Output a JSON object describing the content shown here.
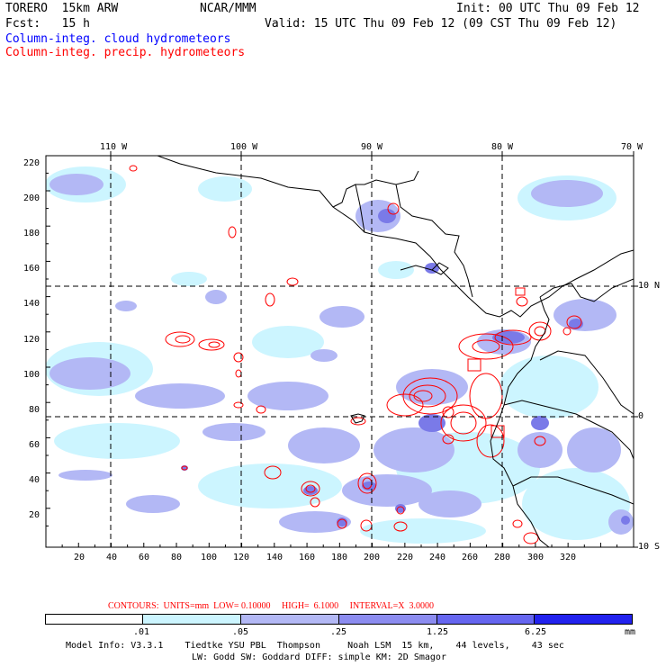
{
  "header": {
    "model": "TORERO  15km ARW",
    "org": "NCAR/MMM",
    "init": "Init: 00 UTC Thu 09 Feb 12",
    "fcst": "Fcst:   15 h",
    "valid": "Valid: 15 UTC Thu 09 Feb 12 (09 CST Thu 09 Feb 12)",
    "field1": "Column-integ. cloud hydrometeors",
    "field2": "Column-integ. precip. hydrometeors"
  },
  "axes": {
    "lon_labels": [
      "110 W",
      "100 W",
      "90 W",
      "80 W",
      "70 W"
    ],
    "lat_labels": [
      "10 N",
      "0",
      "10 S"
    ],
    "y_ticks": [
      "220",
      "200",
      "180",
      "160",
      "140",
      "120",
      "100",
      "80",
      "60",
      "40",
      "20"
    ],
    "x_ticks": [
      "20",
      "40",
      "60",
      "80",
      "100",
      "120",
      "140",
      "160",
      "180",
      "200",
      "220",
      "240",
      "260",
      "280",
      "300",
      "320"
    ]
  },
  "contour_info": {
    "label": "CONTOURS:  UNITS=mm  LOW= 0.10000     HIGH=  6.1000     INTERVAL=X  3.0000"
  },
  "legend": {
    "values": [
      ".01",
      ".05",
      ".25",
      "1.25",
      "6.25"
    ],
    "unit": "mm",
    "colors": [
      "#ffffff",
      "#ccf5ff",
      "#b3b8f5",
      "#8c8cf0",
      "#6666f0",
      "#2222ee"
    ]
  },
  "footer": {
    "line1": "Model Info: V3.3.1    Tiedtke YSU PBL  Thompson     Noah LSM  15 km,    44 levels,    43 sec",
    "line2": "LW: Godd SW: Goddard DIFF: simple KM: 2D Smagor"
  },
  "colors": {
    "cloud": "#0000ff",
    "precip": "#ff0000",
    "light": "#ccf5ff",
    "mid": "#b3b8f5",
    "dark": "#7a7ae8"
  }
}
